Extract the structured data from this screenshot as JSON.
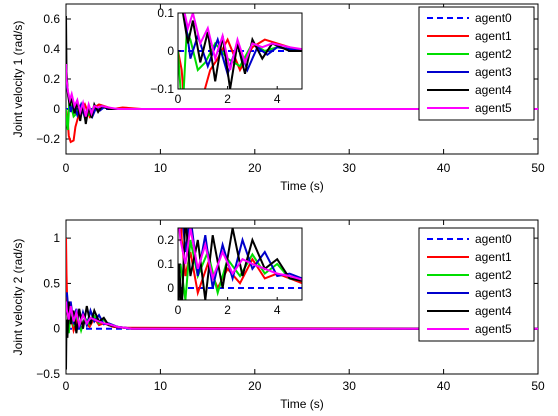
{
  "chart_data": [
    {
      "type": "line",
      "xlabel": "Time (s)",
      "ylabel": "Joint velocity 1 (rad/s)",
      "xlim": [
        0,
        50
      ],
      "ylim": [
        -0.3,
        0.7
      ],
      "xticks": [
        "0",
        "10",
        "20",
        "30",
        "40",
        "50"
      ],
      "yticks": [
        "−0.2",
        "0",
        "0.2",
        "0.4",
        "0.6"
      ],
      "legend_position": "top-right",
      "series": [
        {
          "name": "agent0",
          "color": "#0000ff",
          "dash": "dashed",
          "x": [
            0,
            50
          ],
          "y": [
            0,
            0
          ]
        },
        {
          "name": "agent1",
          "color": "#ff0000",
          "x": [
            0,
            0.15,
            0.3,
            0.5,
            0.8,
            1.0,
            1.3,
            1.6,
            2.0,
            2.5,
            3.0,
            3.5,
            4.0,
            5,
            6,
            8,
            50
          ],
          "y": [
            0.0,
            -0.05,
            -0.18,
            -0.22,
            -0.21,
            -0.12,
            -0.05,
            -0.02,
            0.03,
            -0.05,
            0.01,
            0.03,
            0.02,
            0.0,
            0.01,
            0.0,
            0.0
          ]
        },
        {
          "name": "agent2",
          "color": "#00dd00",
          "x": [
            0,
            0.1,
            0.2,
            0.35,
            0.5,
            0.8,
            1.1,
            1.5,
            2.0,
            2.5,
            3.0,
            3.5,
            4.0,
            5,
            6,
            50
          ],
          "y": [
            0.0,
            -0.1,
            -0.14,
            0.05,
            0.03,
            -0.05,
            -0.03,
            0.02,
            -0.02,
            -0.04,
            0.02,
            0.0,
            0.01,
            0.0,
            0.0,
            0.0
          ]
        },
        {
          "name": "agent3",
          "color": "#0000cc",
          "x": [
            0,
            0.1,
            0.3,
            0.5,
            0.8,
            1.2,
            1.6,
            2.0,
            2.4,
            2.8,
            3.2,
            3.6,
            4.0,
            5,
            6,
            50
          ],
          "y": [
            0.3,
            0.15,
            0.08,
            -0.02,
            0.04,
            -0.04,
            0.03,
            -0.06,
            0.02,
            -0.05,
            0.01,
            -0.01,
            0.01,
            0.0,
            0.0,
            0.0
          ]
        },
        {
          "name": "agent4",
          "color": "#000000",
          "x": [
            0,
            0.05,
            0.2,
            0.4,
            0.6,
            0.9,
            1.2,
            1.5,
            1.8,
            2.1,
            2.4,
            2.7,
            3.0,
            3.4,
            3.8,
            4.5,
            5.5,
            50
          ],
          "y": [
            0.62,
            0.25,
            0.1,
            0.02,
            0.08,
            -0.03,
            0.05,
            -0.08,
            0.04,
            -0.1,
            0.02,
            -0.06,
            0.03,
            -0.02,
            0.02,
            0.0,
            0.0,
            0.0
          ]
        },
        {
          "name": "agent5",
          "color": "#ff00ff",
          "x": [
            0,
            0.05,
            0.2,
            0.4,
            0.6,
            0.9,
            1.2,
            1.5,
            1.8,
            2.1,
            2.4,
            2.7,
            3.0,
            3.4,
            3.8,
            4.5,
            5.5,
            50
          ],
          "y": [
            0.3,
            0.2,
            0.12,
            0.06,
            0.1,
            0.02,
            0.06,
            -0.02,
            0.04,
            -0.05,
            0.03,
            -0.03,
            0.02,
            0.01,
            0.02,
            0.01,
            0.0,
            0.0
          ]
        }
      ],
      "inset": {
        "xlim": [
          0,
          5
        ],
        "ylim": [
          -0.1,
          0.1
        ],
        "xticks": [
          "0",
          "2",
          "4"
        ],
        "yticks": [
          "−0.1",
          "0",
          "0.1"
        ]
      }
    },
    {
      "type": "line",
      "xlabel": "Time (s)",
      "ylabel": "Joint velocity 2 (rad/s)",
      "xlim": [
        0,
        50
      ],
      "ylim": [
        -0.5,
        1.2
      ],
      "xticks": [
        "0",
        "10",
        "20",
        "30",
        "40",
        "50"
      ],
      "yticks": [
        "−0.5",
        "0",
        "0.5",
        "1"
      ],
      "legend_position": "top-right",
      "series": [
        {
          "name": "agent0",
          "color": "#0000ff",
          "dash": "dashed",
          "x": [
            0,
            50
          ],
          "y": [
            0,
            0
          ]
        },
        {
          "name": "agent1",
          "color": "#ff0000",
          "x": [
            0,
            0.05,
            0.15,
            0.3,
            0.5,
            0.8,
            1.2,
            1.6,
            2.0,
            2.5,
            3.0,
            3.5,
            4.0,
            5,
            6,
            50
          ],
          "y": [
            1.0,
            0.6,
            0.2,
            0.05,
            0.15,
            -0.02,
            0.1,
            0.0,
            0.08,
            0.02,
            0.12,
            0.04,
            0.06,
            0.02,
            0.01,
            0.0
          ]
        },
        {
          "name": "agent2",
          "color": "#00dd00",
          "x": [
            0,
            0.1,
            0.3,
            0.5,
            0.8,
            1.2,
            1.6,
            2.0,
            2.5,
            3.0,
            3.5,
            4.0,
            4.5,
            5.5,
            7,
            50
          ],
          "y": [
            0.0,
            0.1,
            -0.05,
            0.2,
            0.05,
            0.15,
            -0.02,
            0.12,
            0.05,
            0.14,
            0.06,
            0.1,
            0.04,
            0.02,
            0.0,
            0.0
          ]
        },
        {
          "name": "agent3",
          "color": "#0000cc",
          "x": [
            0,
            0.1,
            0.3,
            0.5,
            0.8,
            1.1,
            1.4,
            1.8,
            2.2,
            2.6,
            3.0,
            3.5,
            4.0,
            4.5,
            5.5,
            7,
            50
          ],
          "y": [
            0.35,
            0.4,
            0.15,
            0.3,
            0.05,
            0.22,
            0.0,
            0.18,
            0.04,
            0.2,
            0.08,
            0.15,
            0.05,
            0.06,
            0.02,
            0.0,
            0.0
          ]
        },
        {
          "name": "agent4",
          "color": "#000000",
          "x": [
            0,
            0.05,
            0.15,
            0.3,
            0.5,
            0.8,
            1.1,
            1.4,
            1.8,
            2.2,
            2.6,
            3.0,
            3.5,
            4.0,
            4.5,
            5.5,
            7,
            50
          ],
          "y": [
            -0.45,
            0.1,
            -0.1,
            0.3,
            0.05,
            0.2,
            -0.05,
            0.22,
            0.0,
            0.25,
            0.05,
            0.2,
            0.08,
            0.12,
            0.04,
            0.02,
            0.0,
            0.0
          ]
        },
        {
          "name": "agent5",
          "color": "#ff00ff",
          "x": [
            0,
            0.1,
            0.3,
            0.5,
            0.8,
            1.1,
            1.4,
            1.8,
            2.2,
            2.6,
            3.0,
            3.5,
            4.0,
            4.5,
            5.5,
            7,
            50
          ],
          "y": [
            0.3,
            0.2,
            0.1,
            0.25,
            0.08,
            0.18,
            0.04,
            0.15,
            0.06,
            0.12,
            0.1,
            0.08,
            0.06,
            0.05,
            0.02,
            0.0,
            0.0
          ]
        }
      ],
      "inset": {
        "xlim": [
          0,
          5
        ],
        "ylim": [
          -0.05,
          0.25
        ],
        "xticks": [
          "0",
          "2",
          "4"
        ],
        "yticks": [
          "0",
          "0.1",
          "0.2"
        ]
      }
    }
  ]
}
